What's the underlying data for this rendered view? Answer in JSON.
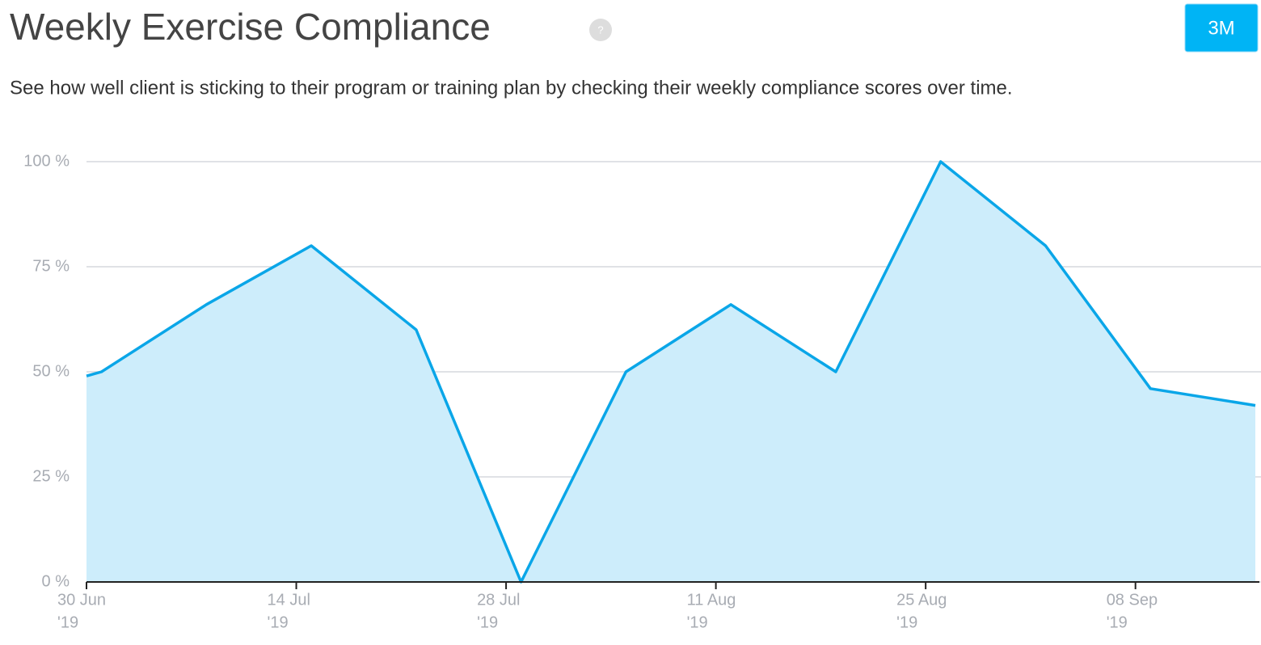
{
  "chart_data": {
    "type": "area",
    "title": "Weekly Exercise Compliance",
    "help_icon": "?",
    "subtitle": "See how well client is sticking to their program or training plan by checking their weekly compliance scores over time.",
    "range_button": "3M",
    "x": [
      "2019-06-30",
      "2019-07-01",
      "2019-07-08",
      "2019-07-15",
      "2019-07-22",
      "2019-07-29",
      "2019-08-05",
      "2019-08-12",
      "2019-08-19",
      "2019-08-26",
      "2019-09-02",
      "2019-09-09",
      "2019-09-16"
    ],
    "series": [
      {
        "color": "#0aa6e8",
        "fill_color": "#cdedfb",
        "values": [
          49,
          50,
          66,
          80,
          60,
          0,
          50,
          66,
          50,
          100,
          80,
          46,
          42
        ]
      }
    ],
    "xlim": [
      "2019-06-30",
      "2019-09-16"
    ],
    "xticks": [
      {
        "value": "2019-06-30",
        "label": [
          "30 Jun",
          "'19"
        ]
      },
      {
        "value": "2019-07-14",
        "label": [
          "14 Jul",
          "'19"
        ]
      },
      {
        "value": "2019-07-28",
        "label": [
          "28 Jul",
          "'19"
        ]
      },
      {
        "value": "2019-08-11",
        "label": [
          "11 Aug",
          "'19"
        ]
      },
      {
        "value": "2019-08-25",
        "label": [
          "25 Aug",
          "'19"
        ]
      },
      {
        "value": "2019-09-08",
        "label": [
          "08 Sep",
          "'19"
        ]
      }
    ],
    "ylim": [
      0,
      100
    ],
    "yticks": [
      {
        "value": 0,
        "label": "0 %"
      },
      {
        "value": 25,
        "label": "25 %"
      },
      {
        "value": 50,
        "label": "50 %"
      },
      {
        "value": 75,
        "label": "75 %"
      },
      {
        "value": 100,
        "label": "100 %"
      }
    ],
    "grid": true
  }
}
